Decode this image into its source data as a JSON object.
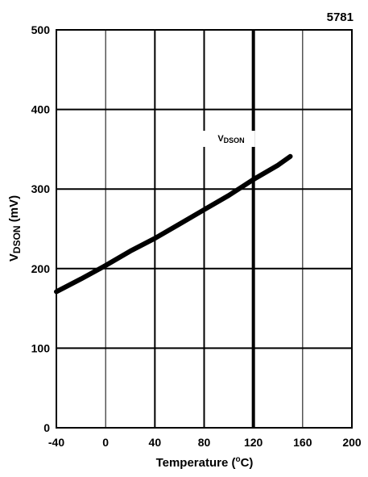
{
  "chart_data": {
    "type": "line",
    "figure_id": "5781",
    "xlabel": "Temperature (°C)",
    "ylabel": "VDSON (mV)",
    "xlim": [
      -40,
      200
    ],
    "ylim": [
      0,
      500
    ],
    "x_ticks": [
      -40,
      0,
      40,
      80,
      120,
      160,
      200
    ],
    "y_ticks": [
      0,
      100,
      200,
      300,
      400,
      500
    ],
    "grid": true,
    "series": [
      {
        "name": "VDSON",
        "x": [
          -40,
          -20,
          0,
          20,
          40,
          60,
          80,
          100,
          120,
          140,
          150
        ],
        "y": [
          171,
          187,
          204,
          222,
          238,
          256,
          274,
          292,
          312,
          330,
          341
        ]
      }
    ]
  }
}
